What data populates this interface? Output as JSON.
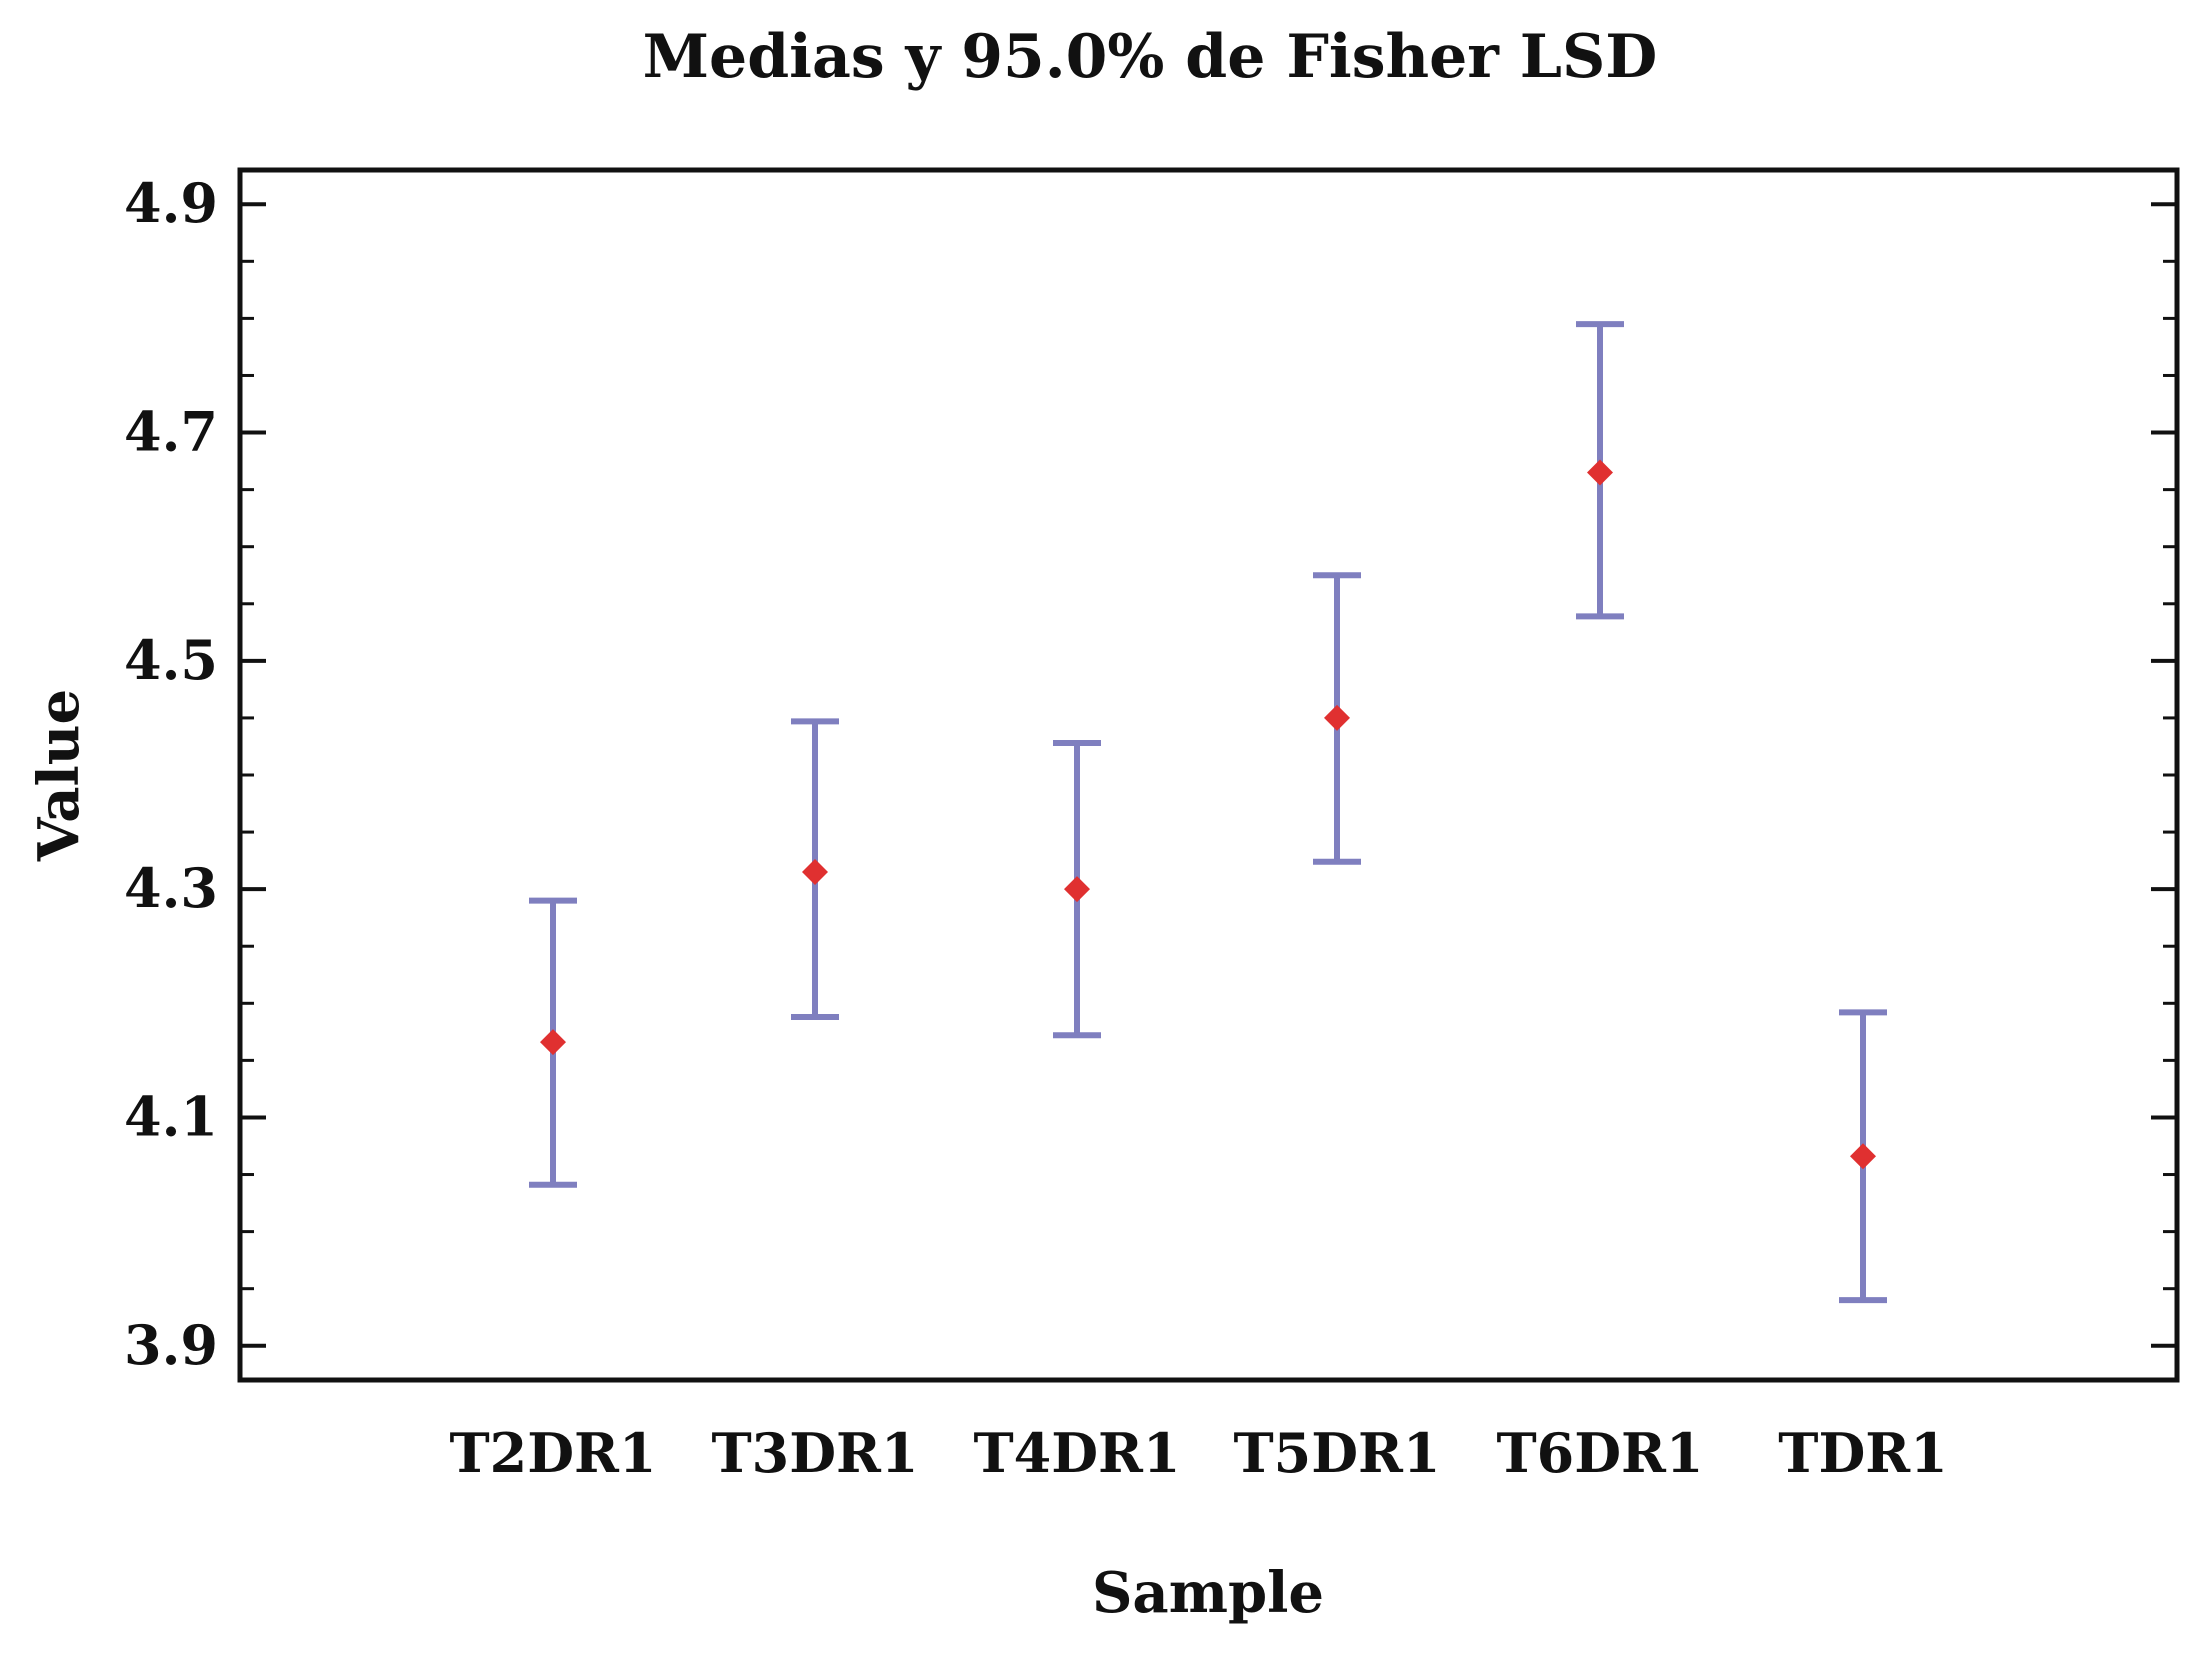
{
  "chart_data": {
    "type": "scatter",
    "title": "Medias y 95.0% de Fisher LSD",
    "xlabel": "Sample",
    "ylabel": "Value",
    "ylim": [
      3.87,
      4.93
    ],
    "yticks": [
      "4.9",
      "4.7",
      "4.5",
      "4.3",
      "4.1",
      "3.9"
    ],
    "ytick_values": [
      4.9,
      4.7,
      4.5,
      4.3,
      4.1,
      3.9
    ],
    "minor_tick_step": 0.05,
    "grid": false,
    "categories": [
      "T2DR1",
      "T3DR1",
      "T4DR1",
      "T5DR1",
      "T6DR1",
      "TDR1"
    ],
    "means": [
      4.166,
      4.315,
      4.3,
      4.45,
      4.665,
      4.066
    ],
    "lower": [
      4.041,
      4.188,
      4.172,
      4.324,
      4.539,
      3.94
    ],
    "upper": [
      4.29,
      4.447,
      4.428,
      4.575,
      4.795,
      4.192
    ],
    "colors": {
      "marker": "#e03030",
      "interval": "#7f7fbf",
      "frame": "#111111"
    }
  }
}
